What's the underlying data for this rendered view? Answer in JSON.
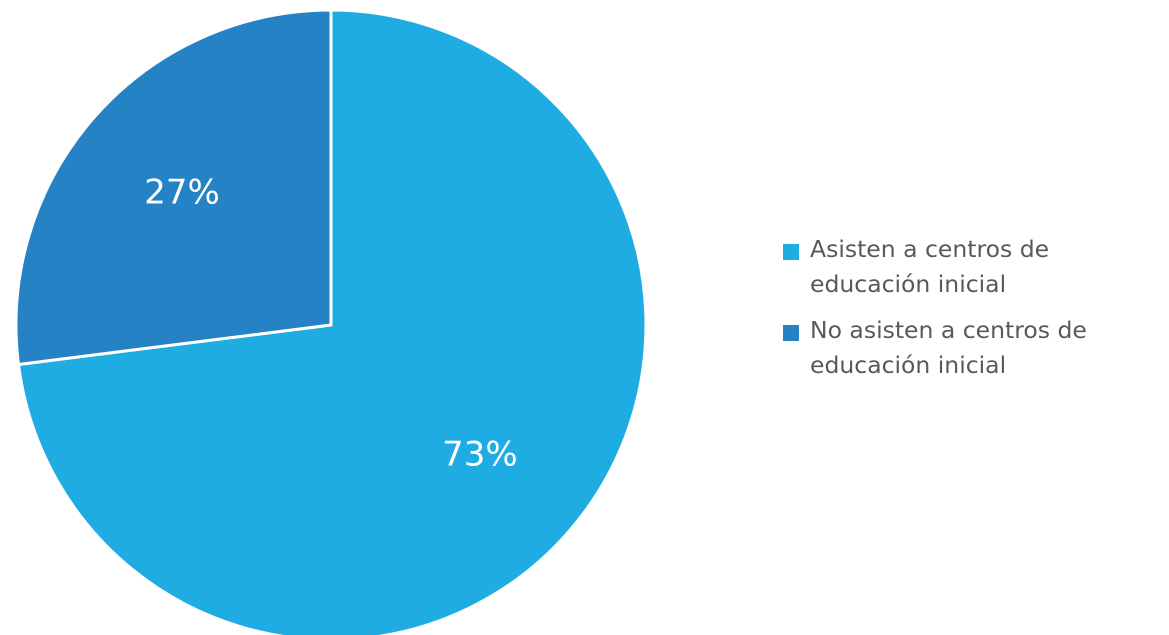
{
  "chart_data": {
    "type": "pie",
    "title": "",
    "start_angle_deg": 0,
    "direction": "clockwise",
    "slices": [
      {
        "label": "Asisten a centros de educación inicial",
        "value": 73,
        "value_label": "73%",
        "color": "#1EACE3"
      },
      {
        "label": "No asisten a centros de educación inicial",
        "value": 27,
        "value_label": "27%",
        "color": "#2582C4"
      }
    ],
    "legend": {
      "position": "right",
      "items": [
        {
          "line1": "Asisten a centros de",
          "line2": "educación inicial",
          "color": "#1EACE3"
        },
        {
          "line1": "No asisten a centros de",
          "line2": "educación inicial",
          "color": "#2582C4"
        }
      ]
    }
  }
}
